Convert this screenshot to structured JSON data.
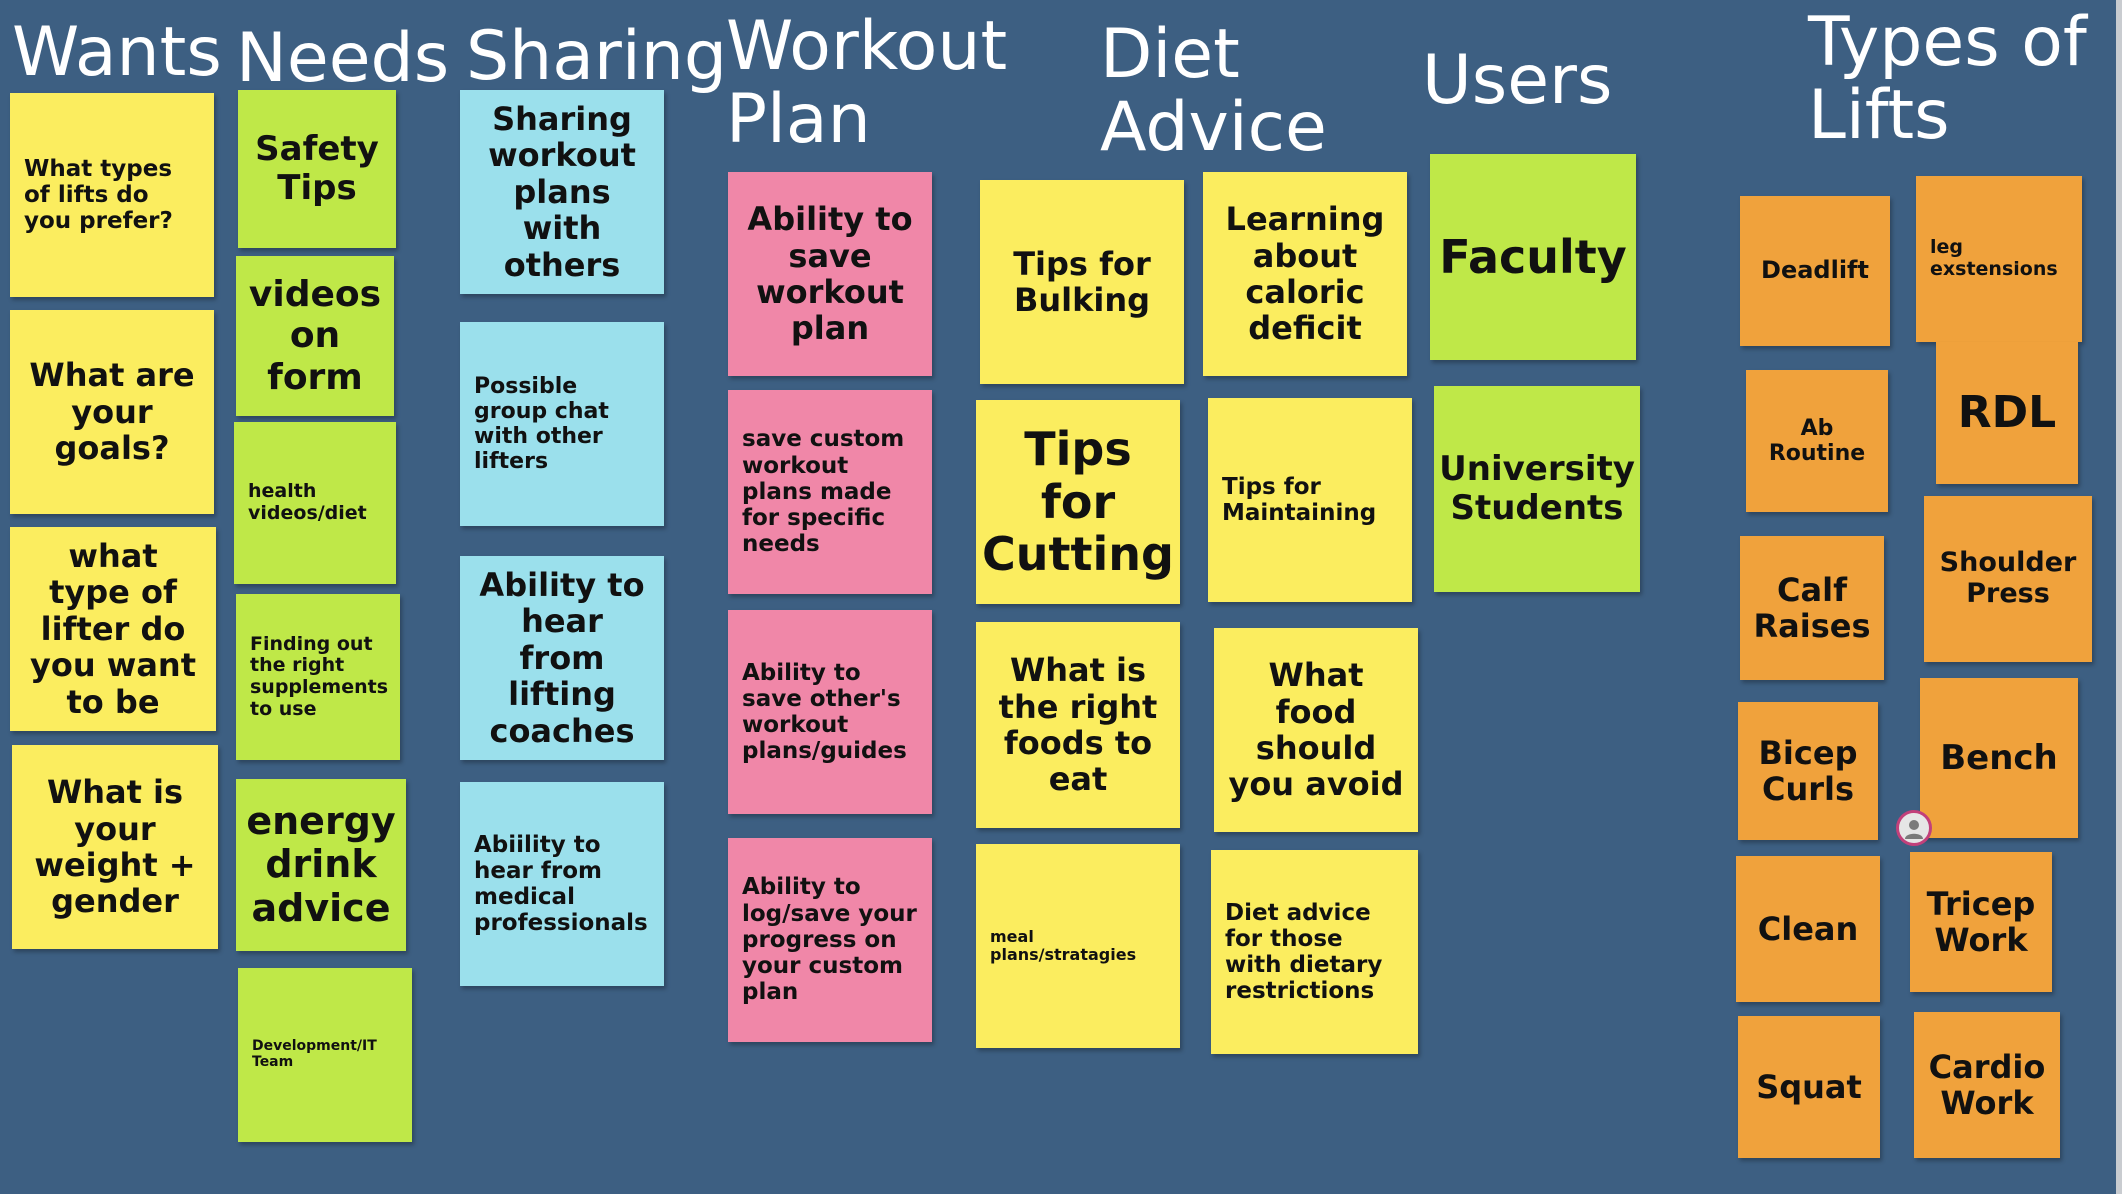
{
  "board": {
    "background": "#3d5f82",
    "columns": {
      "wants": "Wants",
      "needs": "Needs",
      "sharing": "Sharing",
      "workout": "Workout\nPlan",
      "diet": "Diet\nAdvice",
      "users": "Users",
      "lifts": "Types of\nLifts"
    },
    "sticky_colors": {
      "yellow": "#fbed5f",
      "green": "#bfe848",
      "blue": "#9be0ec",
      "pink": "#f087a8",
      "orange": "#f0a23c"
    },
    "wants": [
      "What types of lifts do you prefer?",
      "What are your goals?",
      "what type of lifter do you want to be",
      "What is your weight + gender"
    ],
    "needs": [
      "Safety Tips",
      "videos on form",
      "health videos/diet",
      "Finding out the right supplements to use",
      "energy drink advice",
      "Development/IT Team"
    ],
    "sharing": [
      "Sharing workout plans with others",
      "Possible group chat with other lifters",
      "Ability to hear from lifting coaches",
      "Abiility to hear from medical professionals"
    ],
    "workout": [
      "Ability to save workout plan",
      "save custom workout plans made for specific needs",
      "Ability to save other's workout plans/guides",
      "Ability to log/save your progress on your custom plan"
    ],
    "diet": [
      "Tips for Bulking",
      "Learning about caloric deficit",
      "Tips for Cutting",
      "Tips for Maintaining",
      "What is the right foods to eat",
      "What food should you avoid",
      "meal plans/stratagies",
      "Diet advice for those with dietary restrictions"
    ],
    "users": [
      "Faculty",
      "University Students"
    ],
    "lifts": [
      "Deadlift",
      "leg exstensions",
      "Ab Routine",
      "RDL",
      "Calf Raises",
      "Shoulder Press",
      "Bicep Curls",
      "Bench",
      "Clean",
      "Tricep Work",
      "Squat",
      "Cardio Work"
    ],
    "cursor_icon": "user-avatar-icon"
  }
}
